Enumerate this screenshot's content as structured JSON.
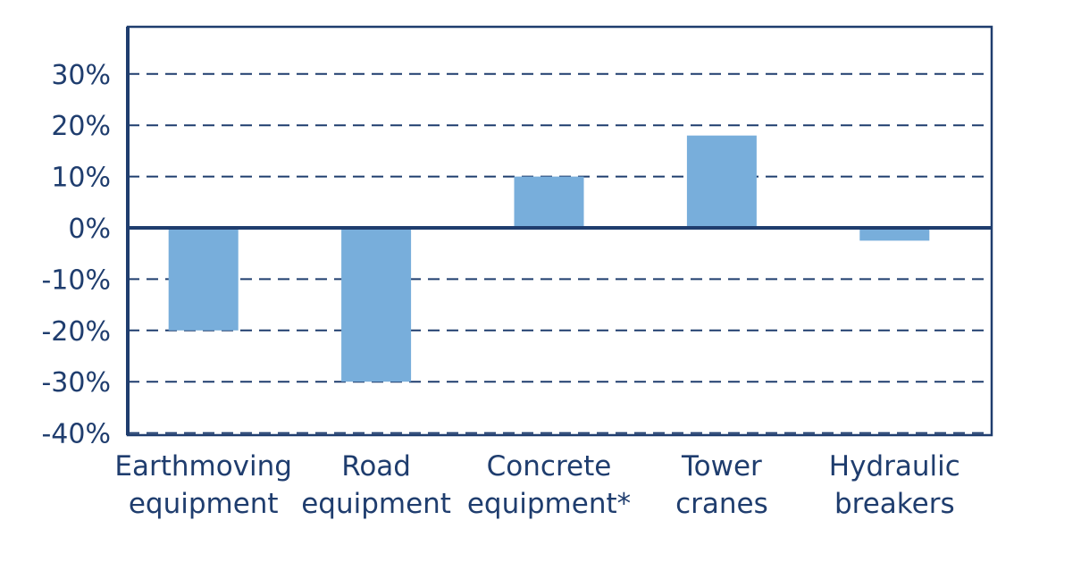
{
  "chart_data": {
    "type": "bar",
    "categories": [
      [
        "Earthmoving",
        "equipment"
      ],
      [
        "Road",
        "equipment"
      ],
      [
        "Concrete",
        "equipment*"
      ],
      [
        "Tower",
        "cranes"
      ],
      [
        "Hydraulic",
        "breakers"
      ]
    ],
    "values": [
      -20,
      -30,
      10,
      18,
      -2.5
    ],
    "y_ticks": [
      "30%",
      "20%",
      "10%",
      "0%",
      "-10%",
      "-20%",
      "-30%",
      "-40%"
    ],
    "y_tick_values": [
      30,
      20,
      10,
      0,
      -10,
      -20,
      -30,
      -40
    ],
    "ylim": [
      -40,
      40
    ],
    "grid": "dashed horizontal",
    "legend": "none",
    "title": "",
    "xlabel": "",
    "ylabel": ""
  },
  "colors": {
    "bar": "#78aedb",
    "axis": "#1f3d6e",
    "grid": "#1f3d6e",
    "text": "#1f3d6e"
  }
}
